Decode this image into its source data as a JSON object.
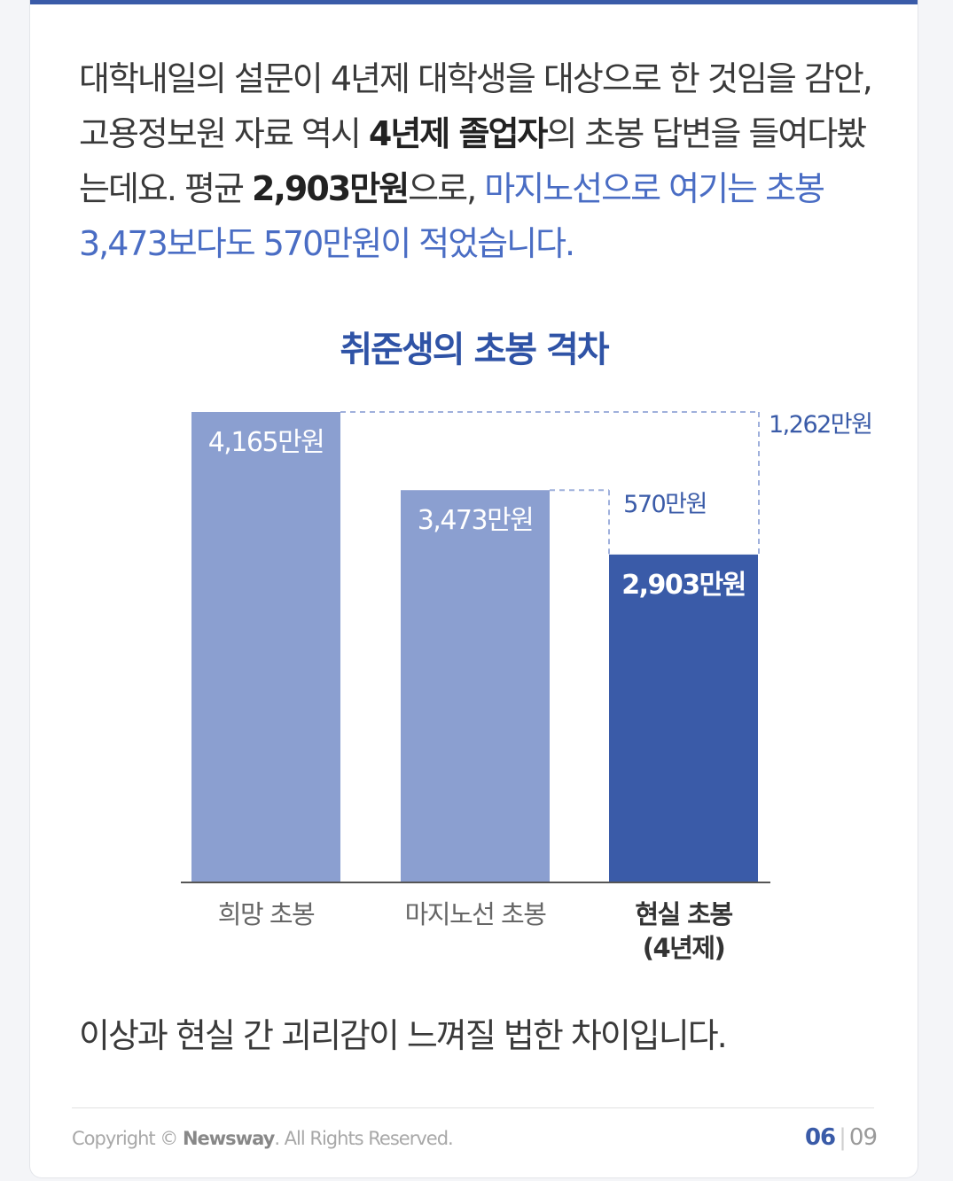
{
  "intro": {
    "p1": "대학내일의 설문이 4년제 대학생을 대상으로 한 것임을 감안, 고용정보원 자료 역시 ",
    "b1": "4년제 졸업자",
    "p2": "의 초봉 답변을 들여다봤는데요. 평균 ",
    "b2": "2,903만원",
    "p3": "으로, ",
    "blue": "마지노선으로 여기는 초봉 3,473보다도 570만원이 적었습니다."
  },
  "chart_data": {
    "type": "bar",
    "title": "취준생의 초봉 격차",
    "unit": "만원",
    "categories": [
      "희망 초봉",
      "마지노선 초봉",
      "현실 초봉 (4년제)"
    ],
    "category_lines": [
      [
        "희망 초봉"
      ],
      [
        "마지노선 초봉"
      ],
      [
        "현실 초봉",
        "(4년제)"
      ]
    ],
    "values": [
      4165,
      3473,
      2903
    ],
    "value_labels": [
      "4,165만원",
      "3,473만원",
      "2,903만원"
    ],
    "colors": [
      "#8b9fd0",
      "#8b9fd0",
      "#3a5ba8"
    ],
    "highlight_index": 2,
    "ylim": [
      0,
      4165
    ],
    "annotations": [
      {
        "from": 0,
        "to": 2,
        "label": "1,262만원"
      },
      {
        "from": 1,
        "to": 2,
        "label": "570만원"
      }
    ]
  },
  "outro": "이상과 현실 간 괴리감이 느껴질 법한 차이입니다.",
  "footer": {
    "copyright_prefix": "Copyright © ",
    "brand": "Newsway",
    "copyright_suffix": ". All Rights Reserved.",
    "page_current": "06",
    "page_total": "09"
  }
}
